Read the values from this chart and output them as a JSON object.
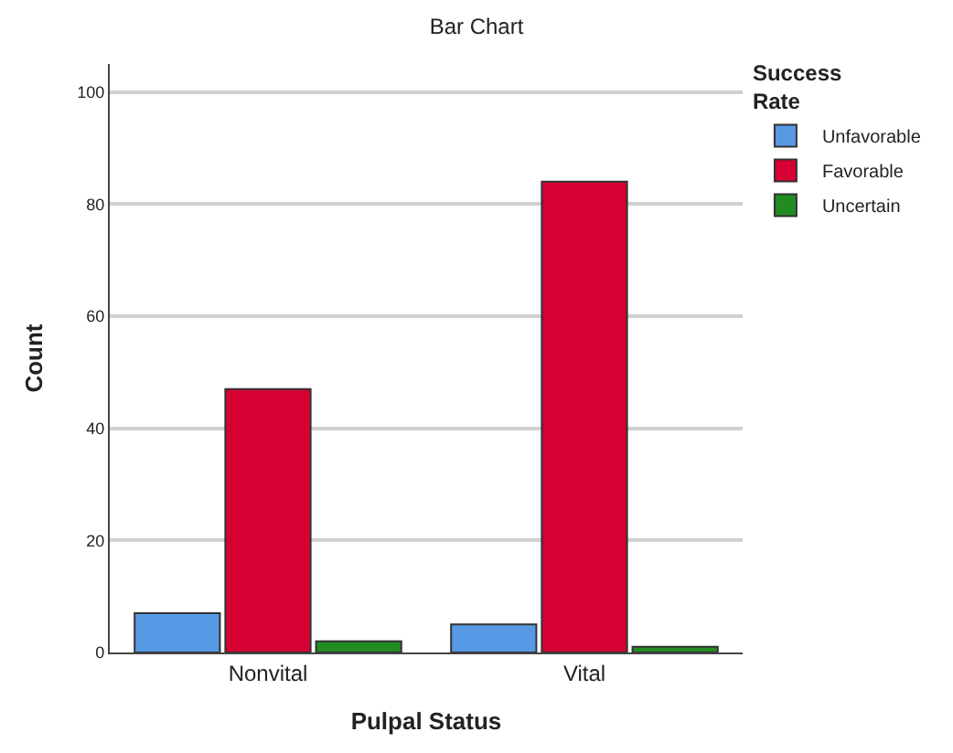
{
  "chart_data": {
    "type": "bar",
    "title": "Bar Chart",
    "xlabel": "Pulpal Status",
    "ylabel": "Count",
    "legend_title": "Success Rate",
    "categories": [
      "Nonvital",
      "Vital"
    ],
    "series": [
      {
        "name": "Unfavorable",
        "color": "#5799e5",
        "values": [
          7,
          5
        ]
      },
      {
        "name": "Favorable",
        "color": "#d60032",
        "values": [
          47,
          84
        ]
      },
      {
        "name": "Uncertain",
        "color": "#228b22",
        "values": [
          2,
          1
        ]
      }
    ],
    "ylim": [
      0,
      105
    ],
    "yticks": [
      0,
      20,
      40,
      60,
      80,
      100
    ],
    "grid": "y",
    "legend": "top right"
  }
}
